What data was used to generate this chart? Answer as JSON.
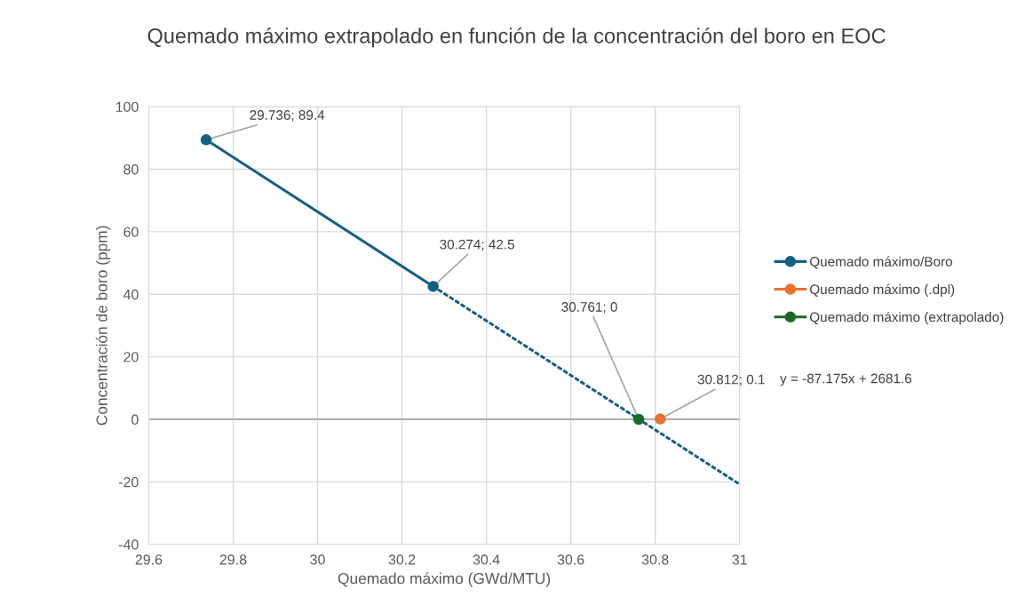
{
  "chart_data": {
    "type": "line",
    "title": "Quemado máximo extrapolado en función de la concentración del boro en EOC",
    "xlabel": "Quemado máximo (GWd/MTU)",
    "ylabel": "Concentración de boro (ppm)",
    "xlim": [
      29.6,
      31
    ],
    "xticks": [
      29.6,
      29.8,
      30,
      30.2,
      30.4,
      30.6,
      30.8,
      31
    ],
    "ylim": [
      -40,
      100
    ],
    "yticks": [
      -40,
      -20,
      0,
      20,
      40,
      60,
      80,
      100
    ],
    "grid": true,
    "legend": "right",
    "marker": "circle",
    "series": [
      {
        "name": "Quemado máximo/Boro",
        "color": "#156082",
        "x": [
          29.736,
          30.274
        ],
        "values": [
          89.4,
          42.5
        ],
        "value_labels": [
          "29.736; 89.4",
          "30.274; 42.5"
        ]
      },
      {
        "name": "Quemado máximo (.dpl)",
        "color": "#e97132",
        "x": [
          30.812
        ],
        "values": [
          0.1
        ],
        "value_labels": [
          "30.812; 0.1"
        ]
      },
      {
        "name": "Quemado máximo (extrapolado)",
        "color": "#196b24",
        "x": [
          30.761
        ],
        "values": [
          0
        ],
        "value_labels": [
          "30.761; 0"
        ]
      },
      {
        "type": "line",
        "color": "#156082",
        "line_style": "dotted",
        "marker": "none",
        "x": [
          30.274,
          31
        ],
        "values": [
          42.5,
          -20.8
        ]
      }
    ],
    "ref_lines": [
      {
        "axis": "y",
        "value": 0,
        "color": "#a6a6a6"
      }
    ],
    "annotations": [
      "y = -87.175x + 2681.6"
    ]
  }
}
